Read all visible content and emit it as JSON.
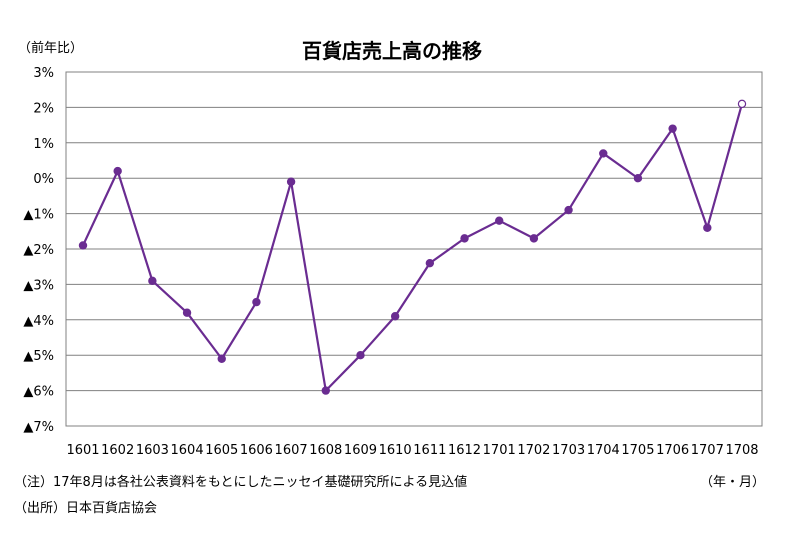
{
  "chart_data": {
    "type": "line",
    "title": "百貨店売上高の推移",
    "ylabel": "（前年比）",
    "xlabel": "（年・月）",
    "categories": [
      "1601",
      "1602",
      "1603",
      "1604",
      "1605",
      "1606",
      "1607",
      "1608",
      "1609",
      "1610",
      "1611",
      "1612",
      "1701",
      "1702",
      "1703",
      "1704",
      "1705",
      "1706",
      "1707",
      "1708"
    ],
    "series": [
      {
        "values": [
          -1.9,
          0.2,
          -2.9,
          -3.8,
          -5.1,
          -3.5,
          -0.1,
          -6.0,
          -5.0,
          -3.9,
          -2.4,
          -1.7,
          -1.2,
          -1.7,
          -0.9,
          0.7,
          0.0,
          1.4,
          -1.4,
          2.1
        ],
        "color": "#6a2c91",
        "last_point_hollow": true
      }
    ],
    "ylim": [
      -7,
      3
    ],
    "yticks": [
      3,
      2,
      1,
      0,
      -1,
      -2,
      -3,
      -4,
      -5,
      -6,
      -7
    ],
    "ytick_labels": [
      "3%",
      "2%",
      "1%",
      "0%",
      "▲1%",
      "▲2%",
      "▲3%",
      "▲4%",
      "▲5%",
      "▲6%",
      "▲7%"
    ],
    "grid": true
  },
  "notes": {
    "note1": "（注）17年8月は各社公表資料をもとにしたニッセイ基礎研究所による見込値",
    "note2": "（出所）日本百貨店協会"
  }
}
